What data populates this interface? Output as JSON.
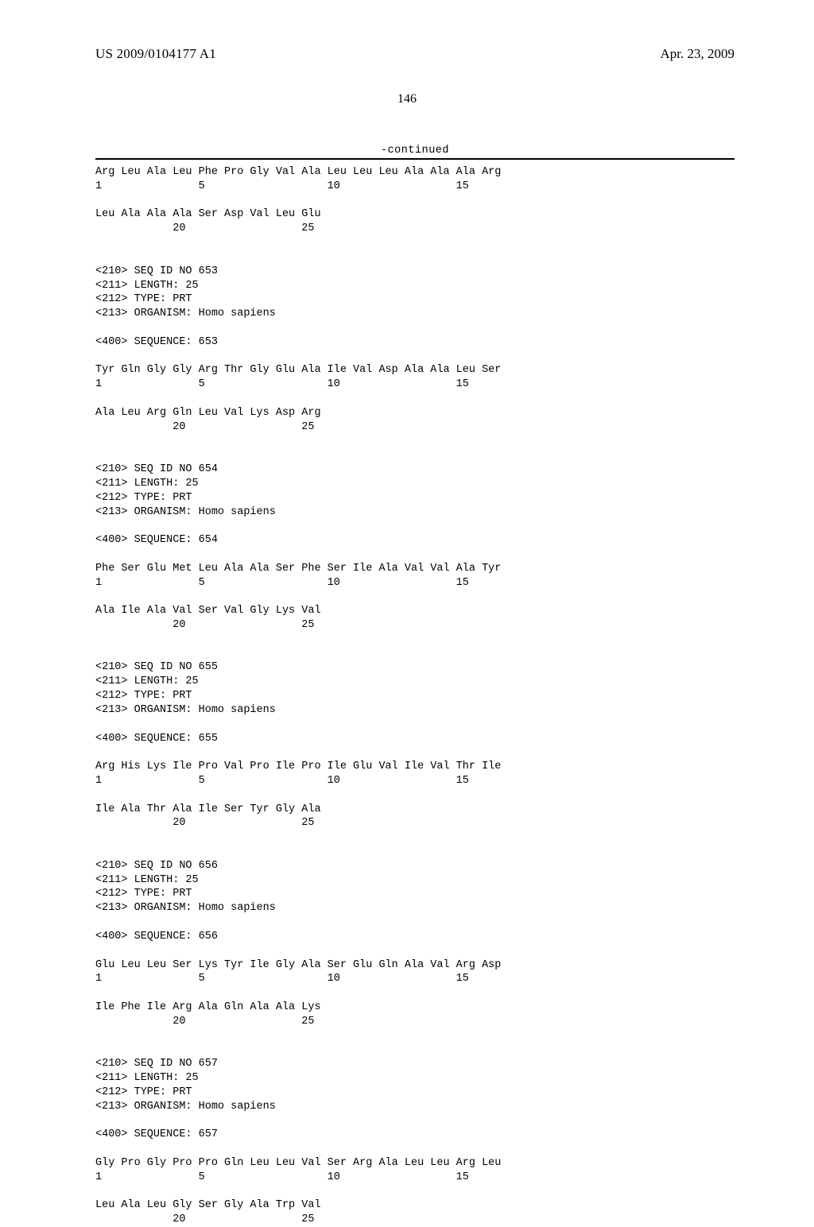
{
  "header": {
    "publication_number": "US 2009/0104177 A1",
    "publication_date": "Apr. 23, 2009",
    "page_number": "146"
  },
  "continued_label": "-continued",
  "sequence_listing_text": "Arg Leu Ala Leu Phe Pro Gly Val Ala Leu Leu Leu Ala Ala Ala Arg\n1               5                   10                  15\n\nLeu Ala Ala Ala Ser Asp Val Leu Glu\n            20                  25\n\n\n<210> SEQ ID NO 653\n<211> LENGTH: 25\n<212> TYPE: PRT\n<213> ORGANISM: Homo sapiens\n\n<400> SEQUENCE: 653\n\nTyr Gln Gly Gly Arg Thr Gly Glu Ala Ile Val Asp Ala Ala Leu Ser\n1               5                   10                  15\n\nAla Leu Arg Gln Leu Val Lys Asp Arg\n            20                  25\n\n\n<210> SEQ ID NO 654\n<211> LENGTH: 25\n<212> TYPE: PRT\n<213> ORGANISM: Homo sapiens\n\n<400> SEQUENCE: 654\n\nPhe Ser Glu Met Leu Ala Ala Ser Phe Ser Ile Ala Val Val Ala Tyr\n1               5                   10                  15\n\nAla Ile Ala Val Ser Val Gly Lys Val\n            20                  25\n\n\n<210> SEQ ID NO 655\n<211> LENGTH: 25\n<212> TYPE: PRT\n<213> ORGANISM: Homo sapiens\n\n<400> SEQUENCE: 655\n\nArg His Lys Ile Pro Val Pro Ile Pro Ile Glu Val Ile Val Thr Ile\n1               5                   10                  15\n\nIle Ala Thr Ala Ile Ser Tyr Gly Ala\n            20                  25\n\n\n<210> SEQ ID NO 656\n<211> LENGTH: 25\n<212> TYPE: PRT\n<213> ORGANISM: Homo sapiens\n\n<400> SEQUENCE: 656\n\nGlu Leu Leu Ser Lys Tyr Ile Gly Ala Ser Glu Gln Ala Val Arg Asp\n1               5                   10                  15\n\nIle Phe Ile Arg Ala Gln Ala Ala Lys\n            20                  25\n\n\n<210> SEQ ID NO 657\n<211> LENGTH: 25\n<212> TYPE: PRT\n<213> ORGANISM: Homo sapiens\n\n<400> SEQUENCE: 657\n\nGly Pro Gly Pro Pro Gln Leu Leu Val Ser Arg Ala Leu Leu Arg Leu\n1               5                   10                  15\n\nLeu Ala Leu Gly Ser Gly Ala Trp Val\n            20                  25"
}
